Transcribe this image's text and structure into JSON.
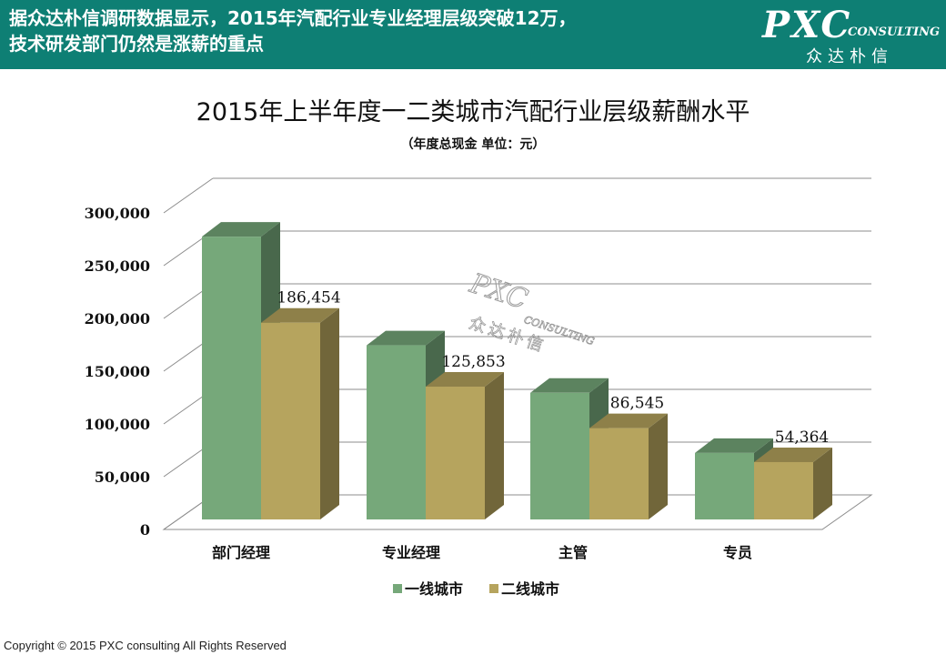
{
  "header": {
    "headline_line1": "据众达朴信调研数据显示，2015年汽配行业专业经理层级突破12万，",
    "headline_line2": "技术研发部门仍然是涨薪的重点",
    "background_color": "#0e7f74"
  },
  "logo": {
    "main": "PXC",
    "sub": "CONSULTING",
    "cn": "众达朴信"
  },
  "watermark": {
    "main": "PXC",
    "sub": "CONSULTING",
    "cn": "众达朴信"
  },
  "footer": {
    "copyright": "Copyright © 2015  PXC consulting All Rights Reserved"
  },
  "chart_data": {
    "type": "bar",
    "title": "2015年上半年度一二类城市汽配行业层级薪酬水平",
    "subtitle": "（年度总现金  单位：元）",
    "categories": [
      "部门经理",
      "专业经理",
      "主管",
      "专员"
    ],
    "series": [
      {
        "name": "一线城市",
        "values": [
          268000,
          165000,
          120000,
          63000
        ],
        "color": "#76a87a",
        "labeled": false
      },
      {
        "name": "二线城市",
        "values": [
          186454,
          125853,
          86545,
          54364
        ],
        "color": "#b6a45e",
        "labeled": true
      }
    ],
    "data_labels": [
      "186,454",
      "125,853",
      "86,545",
      "54,364"
    ],
    "y_ticks": [
      0,
      50000,
      100000,
      150000,
      200000,
      250000,
      300000
    ],
    "y_tick_labels": [
      "0",
      "50,000",
      "100,000",
      "150,000",
      "200,000",
      "250,000",
      "300,000"
    ],
    "ylim": [
      0,
      300000
    ],
    "grid": true,
    "legend_position": "bottom-center",
    "style": "3d-clustered-column"
  }
}
